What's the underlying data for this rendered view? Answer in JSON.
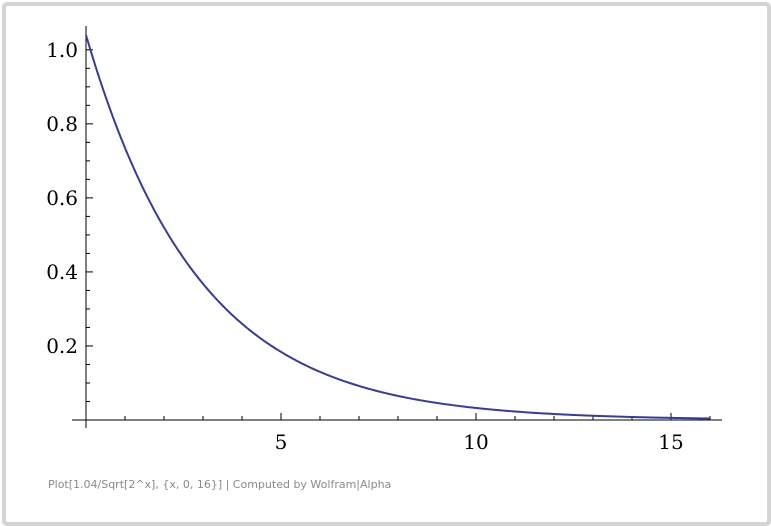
{
  "chart_data": {
    "type": "line",
    "function": "1.04/Sqrt[2^x]",
    "xlim": [
      0,
      16
    ],
    "ylim": [
      0,
      1.04
    ],
    "x_ticks": [
      5,
      10,
      15
    ],
    "x_tick_labels": [
      "5",
      "10",
      "15"
    ],
    "y_ticks": [
      0.2,
      0.4,
      0.6,
      0.8,
      1.0
    ],
    "y_tick_labels": [
      "0.2",
      "0.4",
      "0.6",
      "0.8",
      "1.0"
    ],
    "series": [
      {
        "color": "#3a3a9a",
        "x": [
          0,
          1,
          2,
          3,
          4,
          5,
          6,
          7,
          8,
          9,
          10,
          11,
          12,
          13,
          14,
          15,
          16
        ],
        "y": [
          1.04,
          0.735,
          0.52,
          0.368,
          0.26,
          0.184,
          0.13,
          0.092,
          0.065,
          0.046,
          0.0325,
          0.023,
          0.01625,
          0.0115,
          0.0081,
          0.0057,
          0.0041
        ]
      }
    ],
    "grid": false,
    "legend": "none"
  },
  "footer": {
    "caption": "Plot[1.04/Sqrt[2^x], {x, 0, 16}] | Computed by Wolfram|Alpha"
  }
}
